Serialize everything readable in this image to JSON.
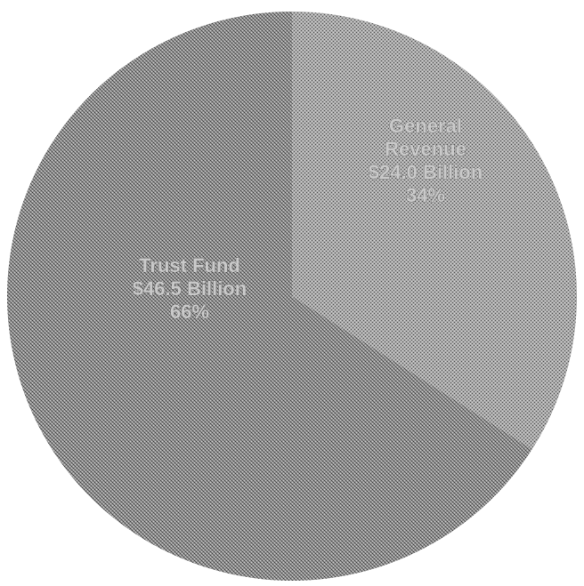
{
  "chart_data": {
    "type": "pie",
    "title": "",
    "slices": [
      {
        "name": "General Revenue",
        "label_lines": [
          "General",
          "Revenue",
          "$24.0 Billion",
          "34%"
        ],
        "value": 24.0,
        "percent": 34,
        "color": "#9b9b9b"
      },
      {
        "name": "Trust Fund",
        "label_lines": [
          "Trust Fund",
          "$46.5 Billion",
          "66%"
        ],
        "value": 46.5,
        "percent": 66,
        "color": "#8a8a8a"
      }
    ],
    "legend": "none"
  }
}
